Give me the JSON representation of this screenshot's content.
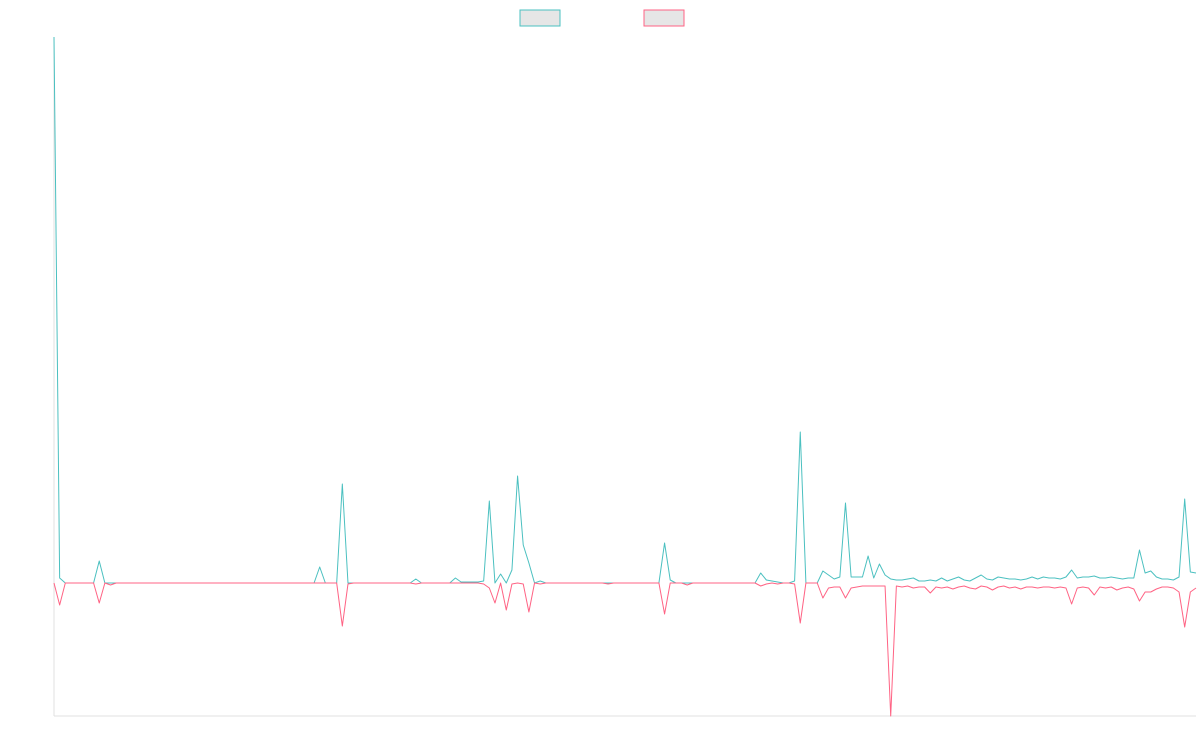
{
  "chart_data": {
    "type": "line",
    "legend": "top",
    "ylim": [
      -133,
      546
    ],
    "series": [
      {
        "color": "#4bc0c0",
        "values": [
          546,
          5,
          0,
          0,
          0,
          0,
          0,
          0,
          22,
          0,
          0,
          0,
          0,
          0,
          0,
          0,
          0,
          0,
          0,
          0,
          0,
          0,
          0,
          0,
          0,
          0,
          0,
          0,
          0,
          0,
          0,
          0,
          0,
          0,
          0,
          0,
          0,
          0,
          0,
          0,
          0,
          0,
          0,
          0,
          0,
          0,
          0,
          16,
          0,
          0,
          0,
          99,
          0,
          0,
          0,
          0,
          0,
          0,
          0,
          0,
          0,
          0,
          0,
          0,
          4,
          0,
          0,
          0,
          0,
          0,
          0,
          5,
          1,
          1,
          1,
          1,
          2,
          82,
          0,
          9,
          0,
          13,
          107,
          38,
          20,
          0,
          2,
          0,
          0,
          0,
          0,
          0,
          0,
          0,
          0,
          0,
          0,
          0,
          0,
          0,
          0,
          0,
          0,
          0,
          0,
          0,
          0,
          0,
          40,
          3,
          0,
          0,
          0,
          0,
          0,
          0,
          0,
          0,
          0,
          0,
          0,
          0,
          0,
          0,
          0,
          10,
          3,
          2,
          1,
          0,
          0,
          2,
          151,
          0,
          0,
          0,
          12,
          8,
          4,
          6,
          80,
          6,
          6,
          6,
          27,
          5,
          19,
          8,
          4,
          3,
          3,
          4,
          5,
          2,
          2,
          3,
          2,
          5,
          2,
          4,
          6,
          3,
          2,
          5,
          8,
          4,
          3,
          6,
          5,
          4,
          4,
          3,
          4,
          6,
          4,
          6,
          5,
          5,
          4,
          6,
          13,
          5,
          6,
          6,
          7,
          5,
          5,
          6,
          5,
          4,
          5,
          5,
          33,
          10,
          12,
          6,
          4,
          4,
          3,
          6,
          84,
          11,
          10
        ]
      },
      {
        "color": "#ff6384",
        "values": [
          0,
          -22,
          0,
          0,
          0,
          0,
          0,
          0,
          -20,
          0,
          -2,
          0,
          0,
          0,
          0,
          0,
          0,
          0,
          0,
          0,
          0,
          0,
          0,
          0,
          0,
          0,
          0,
          0,
          0,
          0,
          0,
          0,
          0,
          0,
          0,
          0,
          0,
          0,
          0,
          0,
          0,
          0,
          0,
          0,
          0,
          0,
          0,
          0,
          0,
          0,
          0,
          -43,
          -1,
          0,
          0,
          0,
          0,
          0,
          0,
          0,
          0,
          0,
          0,
          0,
          -1,
          0,
          0,
          0,
          0,
          0,
          0,
          0,
          0,
          0,
          0,
          0,
          -1,
          -5,
          -20,
          0,
          -27,
          -1,
          0,
          -1,
          -29,
          0,
          -1,
          0,
          0,
          0,
          0,
          0,
          0,
          0,
          0,
          0,
          0,
          0,
          -1,
          0,
          0,
          0,
          0,
          0,
          0,
          0,
          0,
          0,
          -31,
          0,
          0,
          0,
          -2,
          0,
          0,
          0,
          0,
          0,
          0,
          0,
          0,
          0,
          0,
          0,
          0,
          -3,
          -1,
          0,
          -1,
          0,
          0,
          -1,
          -40,
          0,
          0,
          0,
          -15,
          -5,
          -4,
          -4,
          -15,
          -5,
          -4,
          -3,
          -3,
          -3,
          -3,
          -3,
          -133,
          -3,
          -4,
          -3,
          -5,
          -4,
          -4,
          -10,
          -4,
          -5,
          -4,
          -6,
          -4,
          -3,
          -5,
          -6,
          -3,
          -4,
          -7,
          -4,
          -3,
          -5,
          -4,
          -6,
          -4,
          -4,
          -5,
          -4,
          -4,
          -5,
          -4,
          -5,
          -21,
          -5,
          -4,
          -5,
          -12,
          -4,
          -5,
          -4,
          -7,
          -5,
          -4,
          -6,
          -18,
          -9,
          -9,
          -6,
          -4,
          -4,
          -5,
          -9,
          -44,
          -9,
          -5
        ]
      }
    ]
  }
}
